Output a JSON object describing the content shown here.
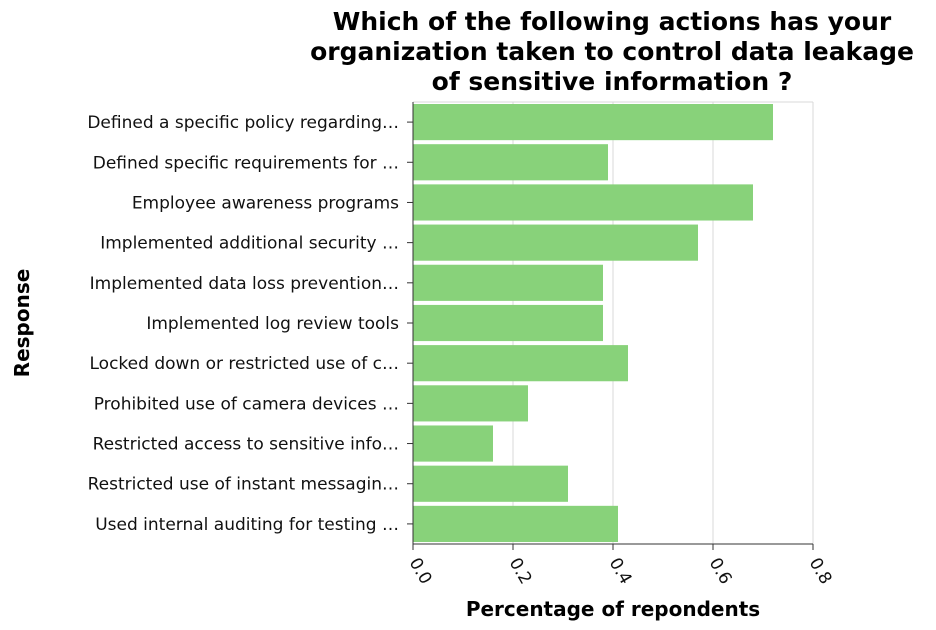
{
  "chart_data": {
    "type": "bar",
    "orientation": "horizontal",
    "title_lines": [
      "Which of the following actions has your",
      "organization taken to control data leakage",
      "of sensitive information ?"
    ],
    "xlabel": "Percentage of repondents",
    "ylabel": "Response",
    "categories": [
      "Defined a specific policy regarding…",
      "Defined specific requirements for …",
      "Employee awareness programs",
      "Implemented additional security …",
      "Implemented data loss prevention…",
      "Implemented log review tools",
      "Locked down or restricted use of c…",
      "Prohibited use of camera devices …",
      "Restricted access to sensitive info…",
      "Restricted use of instant messagin…",
      "Used internal auditing for testing …"
    ],
    "values": [
      0.72,
      0.39,
      0.68,
      0.57,
      0.38,
      0.38,
      0.43,
      0.23,
      0.16,
      0.31,
      0.41
    ],
    "xlim": [
      0,
      0.8
    ],
    "xticks": [
      "0.0",
      "0.2",
      "0.4",
      "0.6",
      "0.8"
    ],
    "grid": true,
    "bar_color": "#88d27a",
    "grid_color": "#d9d9d9"
  }
}
